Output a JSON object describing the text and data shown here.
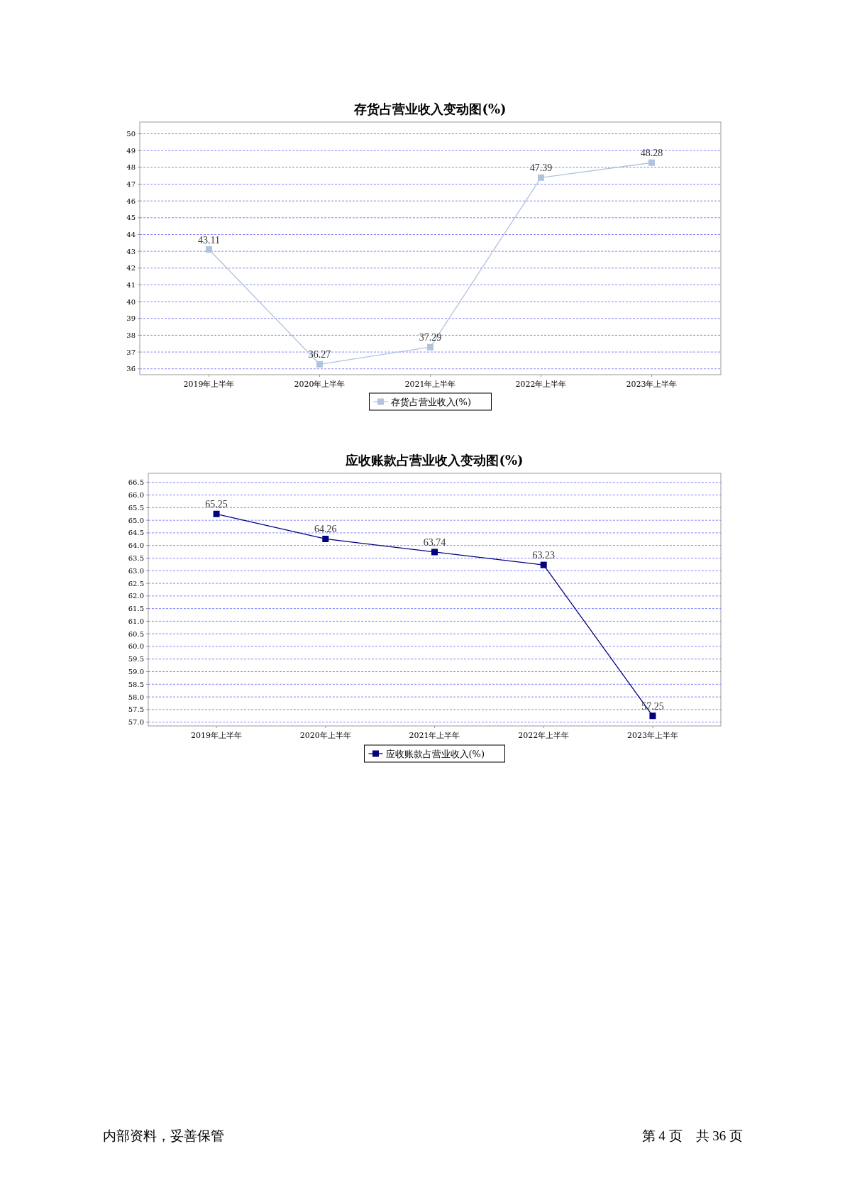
{
  "chart_data": [
    {
      "type": "line",
      "title": "存货占营业收入变动图(%)",
      "categories": [
        "2019年上半年",
        "2020年上半年",
        "2021年上半年",
        "2022年上半年",
        "2023年上半年"
      ],
      "series": [
        {
          "name": "存货占营业收入(%)",
          "color": "#b0c4de",
          "values": [
            43.11,
            36.27,
            37.29,
            47.39,
            48.28
          ]
        }
      ],
      "ylim": [
        35.65,
        50.7
      ],
      "yticks": [
        36,
        37,
        38,
        39,
        40,
        41,
        42,
        43,
        44,
        45,
        46,
        47,
        48,
        49,
        50
      ],
      "grid": "y",
      "legend": "bottom",
      "marker": "square",
      "data_labels": true
    },
    {
      "type": "line",
      "title": "应收账款占营业收入变动图(%)",
      "categories": [
        "2019年上半年",
        "2020年上半年",
        "2021年上半年",
        "2022年上半年",
        "2023年上半年"
      ],
      "series": [
        {
          "name": "应收账款占营业收入(%)",
          "color": "#000080",
          "values": [
            65.25,
            64.26,
            63.74,
            63.23,
            57.25
          ]
        }
      ],
      "ylim": [
        56.85,
        66.86
      ],
      "yticks": [
        {
          "value": 57,
          "label": "57.0"
        },
        57.5,
        {
          "value": 58,
          "label": "58.0"
        },
        58.5,
        {
          "value": 59,
          "label": "59.0"
        },
        59.5,
        {
          "value": 60,
          "label": "60.0"
        },
        60.5,
        {
          "value": 61,
          "label": "61.0"
        },
        61.5,
        {
          "value": 62,
          "label": "62.0"
        },
        62.5,
        {
          "value": 63,
          "label": "63.0"
        },
        63.5,
        {
          "value": 64,
          "label": "64.0"
        },
        64.5,
        {
          "value": 65,
          "label": "65.0"
        },
        65.5,
        {
          "value": 66,
          "label": "66.0"
        },
        66.5
      ],
      "grid": "y",
      "legend": "bottom",
      "marker": "square",
      "data_labels": true,
      "annotations": [
        "内部资料，妥善保管",
        "第 4 页　共 36 页"
      ]
    }
  ]
}
